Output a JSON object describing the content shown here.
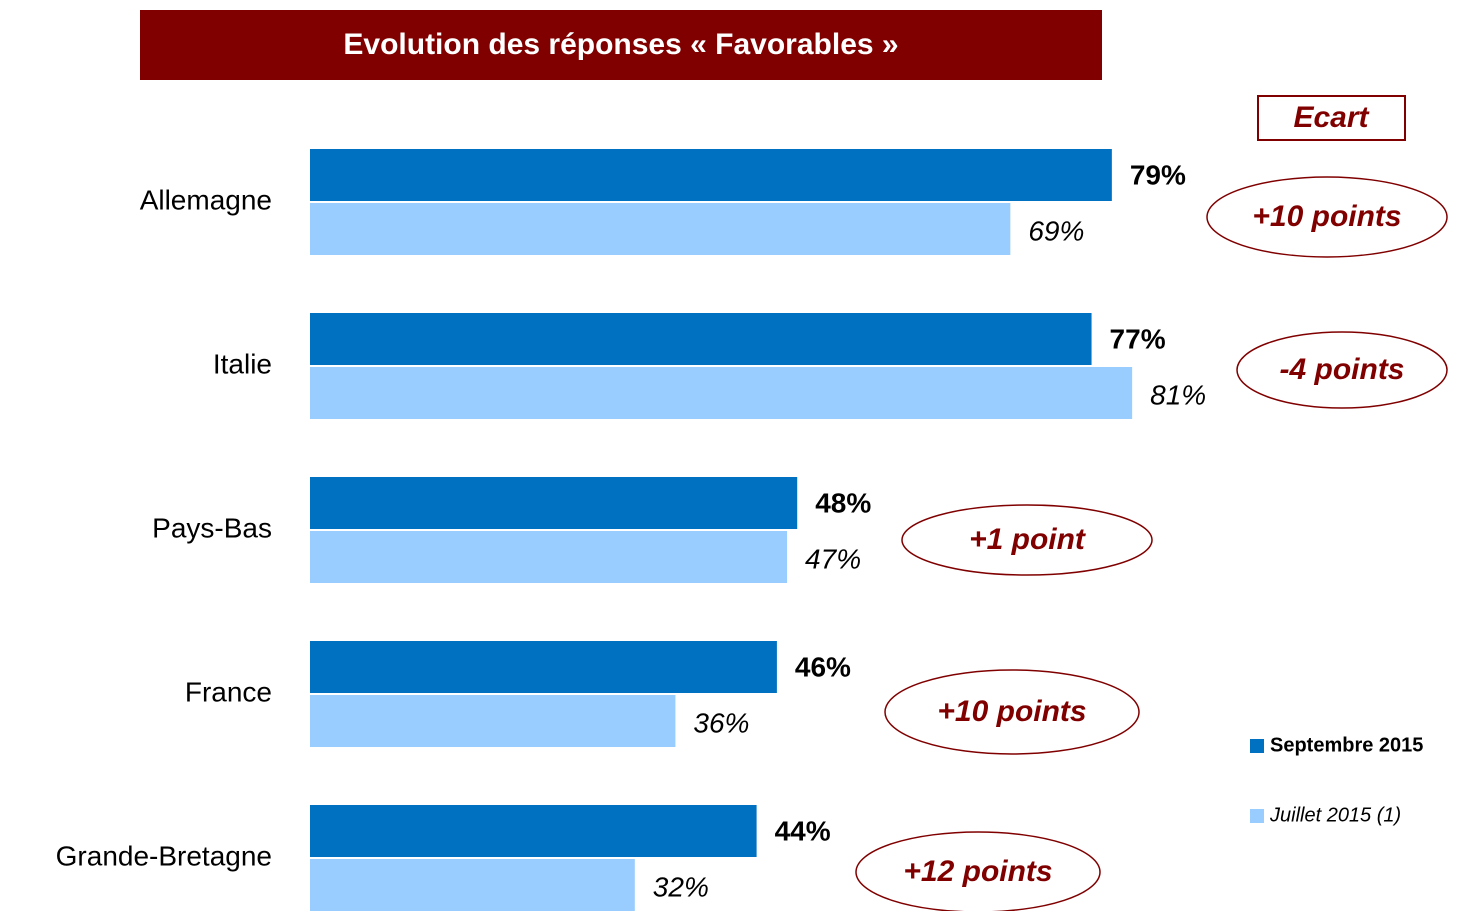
{
  "chart_data": {
    "type": "bar",
    "orientation": "horizontal",
    "title": "Evolution des réponses « Favorables »",
    "categories": [
      "Allemagne",
      "Italie",
      "Pays-Bas",
      "France",
      "Grande-Bretagne"
    ],
    "series": [
      {
        "name": "Septembre 2015",
        "color": "#0070c0",
        "values": [
          79,
          77,
          48,
          46,
          44
        ],
        "value_labels": [
          "79%",
          "77%",
          "48%",
          "46%",
          "44%"
        ]
      },
      {
        "name": "Juillet 2015 (1)",
        "color": "#99ccff",
        "values": [
          69,
          81,
          47,
          36,
          32
        ],
        "value_labels": [
          "69%",
          "81%",
          "47%",
          "36%",
          "32%"
        ]
      }
    ],
    "xlim": [
      0,
      100
    ],
    "ecart_title": "Ecart",
    "ecart": [
      "+10 points",
      "-4 points",
      "+1 point",
      "+10 points",
      "+12 points"
    ]
  }
}
